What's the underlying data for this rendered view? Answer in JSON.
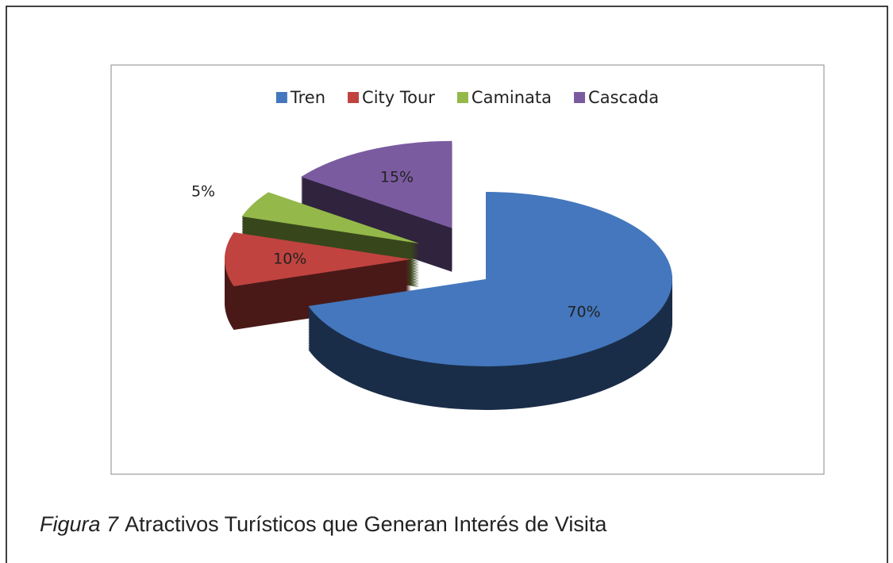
{
  "chart_data": {
    "type": "pie",
    "categories": [
      "Tren",
      "City Tour",
      "Caminata",
      "Cascada"
    ],
    "values": [
      70,
      10,
      5,
      15
    ],
    "value_labels": [
      "70%",
      "10%",
      "5%",
      "15%"
    ],
    "colors": [
      "#4477bd",
      "#c0433f",
      "#94b84a",
      "#7b5ba0"
    ],
    "legend": "top"
  },
  "caption": {
    "label": "Figura 7",
    "text": "Atractivos Turísticos que Generan Interés de Visita"
  }
}
